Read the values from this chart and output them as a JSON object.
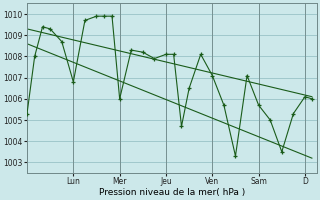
{
  "xlabel": "Pression niveau de la mer( hPa )",
  "bg_color": "#cce8ea",
  "grid_color": "#a0c8cc",
  "line_color": "#1a5c1a",
  "ylim": [
    1002.5,
    1010.5
  ],
  "day_labels": [
    "Lun",
    "Mer",
    "Jeu",
    "Ven",
    "Sam",
    "D"
  ],
  "day_positions": [
    2,
    4,
    6,
    8,
    10,
    12
  ],
  "series1_x": [
    0,
    0.33,
    0.67,
    1,
    1.5,
    2,
    2.5,
    3,
    3.33,
    3.67,
    4,
    4.5,
    5,
    5.5,
    6,
    6.33,
    6.67,
    7,
    7.5,
    8,
    8.5,
    9,
    9.5,
    10,
    10.5,
    11,
    11.5,
    12,
    12.3
  ],
  "series1_y": [
    1005.3,
    1008.0,
    1009.4,
    1009.3,
    1008.7,
    1006.8,
    1009.7,
    1009.9,
    1009.9,
    1009.9,
    1006.0,
    1008.3,
    1008.2,
    1007.9,
    1008.1,
    1008.1,
    1004.7,
    1006.5,
    1008.1,
    1007.1,
    1005.7,
    1003.3,
    1007.1,
    1005.7,
    1005.0,
    1003.5,
    1005.3,
    1006.1,
    1006.0
  ],
  "trend1_x": [
    0,
    12.3
  ],
  "trend1_y": [
    1009.3,
    1006.1
  ],
  "trend2_x": [
    0,
    12.3
  ],
  "trend2_y": [
    1008.6,
    1003.2
  ],
  "yticks": [
    1003,
    1004,
    1005,
    1006,
    1007,
    1008,
    1009,
    1010
  ],
  "xlim": [
    0,
    12.5
  ]
}
